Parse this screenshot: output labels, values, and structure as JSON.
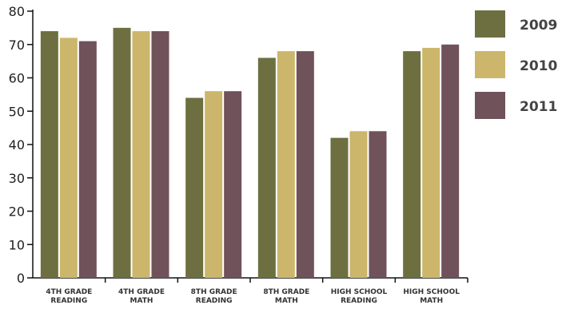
{
  "chart_data": {
    "type": "bar",
    "categories": [
      [
        "4TH GRADE",
        "READING"
      ],
      [
        "4TH GRADE",
        "MATH"
      ],
      [
        "8TH GRADE",
        "READING"
      ],
      [
        "8TH GRADE",
        "MATH"
      ],
      [
        "HIGH SCHOOL",
        "READING"
      ],
      [
        "HIGH SCHOOL",
        "MATH"
      ]
    ],
    "series": [
      {
        "name": "2009",
        "color": "#6d6f40",
        "values": [
          74,
          75,
          54,
          66,
          42,
          68
        ]
      },
      {
        "name": "2010",
        "color": "#cbb66c",
        "values": [
          72,
          74,
          56,
          68,
          44,
          69
        ]
      },
      {
        "name": "2011",
        "color": "#70525b",
        "values": [
          71,
          74,
          56,
          68,
          44,
          70
        ]
      }
    ],
    "ylim": [
      0,
      80
    ],
    "yticks": [
      "0",
      "10",
      "20",
      "30",
      "40",
      "50",
      "60",
      "70",
      "80"
    ],
    "grid": false,
    "legend_position": "right"
  }
}
